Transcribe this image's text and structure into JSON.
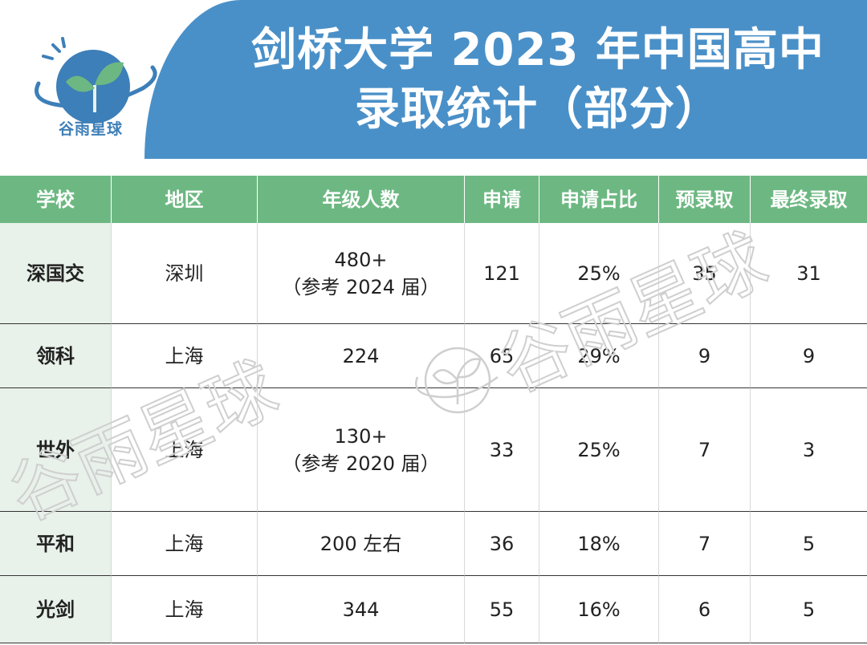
{
  "header": {
    "title_line1": "剑桥大学 2023 年中国高中",
    "title_line2": "录取统计（部分）",
    "logo_text": "谷雨星球"
  },
  "table": {
    "columns": [
      "学校",
      "地区",
      "年级人数",
      "申请",
      "申请占比",
      "预录取",
      "最终录取"
    ],
    "rows": [
      {
        "school": "深国交",
        "region": "深圳",
        "grade_main": "480+",
        "grade_note": "（参考 2024 届）",
        "apply": "121",
        "ratio": "25%",
        "pre": "35",
        "final": "31"
      },
      {
        "school": "领科",
        "region": "上海",
        "grade_main": "224",
        "grade_note": "",
        "apply": "65",
        "ratio": "29%",
        "pre": "9",
        "final": "9"
      },
      {
        "school": "世外",
        "region": "上海",
        "grade_main": "130+",
        "grade_note": "（参考 2020 届）",
        "apply": "33",
        "ratio": "25%",
        "pre": "7",
        "final": "3"
      },
      {
        "school": "平和",
        "region": "上海",
        "grade_main": "200 左右",
        "grade_note": "",
        "apply": "36",
        "ratio": "18%",
        "pre": "7",
        "final": "5"
      },
      {
        "school": "光剑",
        "region": "上海",
        "grade_main": "344",
        "grade_note": "",
        "apply": "55",
        "ratio": "16%",
        "pre": "6",
        "final": "5"
      }
    ]
  },
  "watermark": {
    "text": "谷雨星球"
  },
  "colors": {
    "banner": "#4a90c8",
    "header_row": "#6db882",
    "school_col": "#e8f1ea",
    "logo_leaf": "#6db882"
  }
}
